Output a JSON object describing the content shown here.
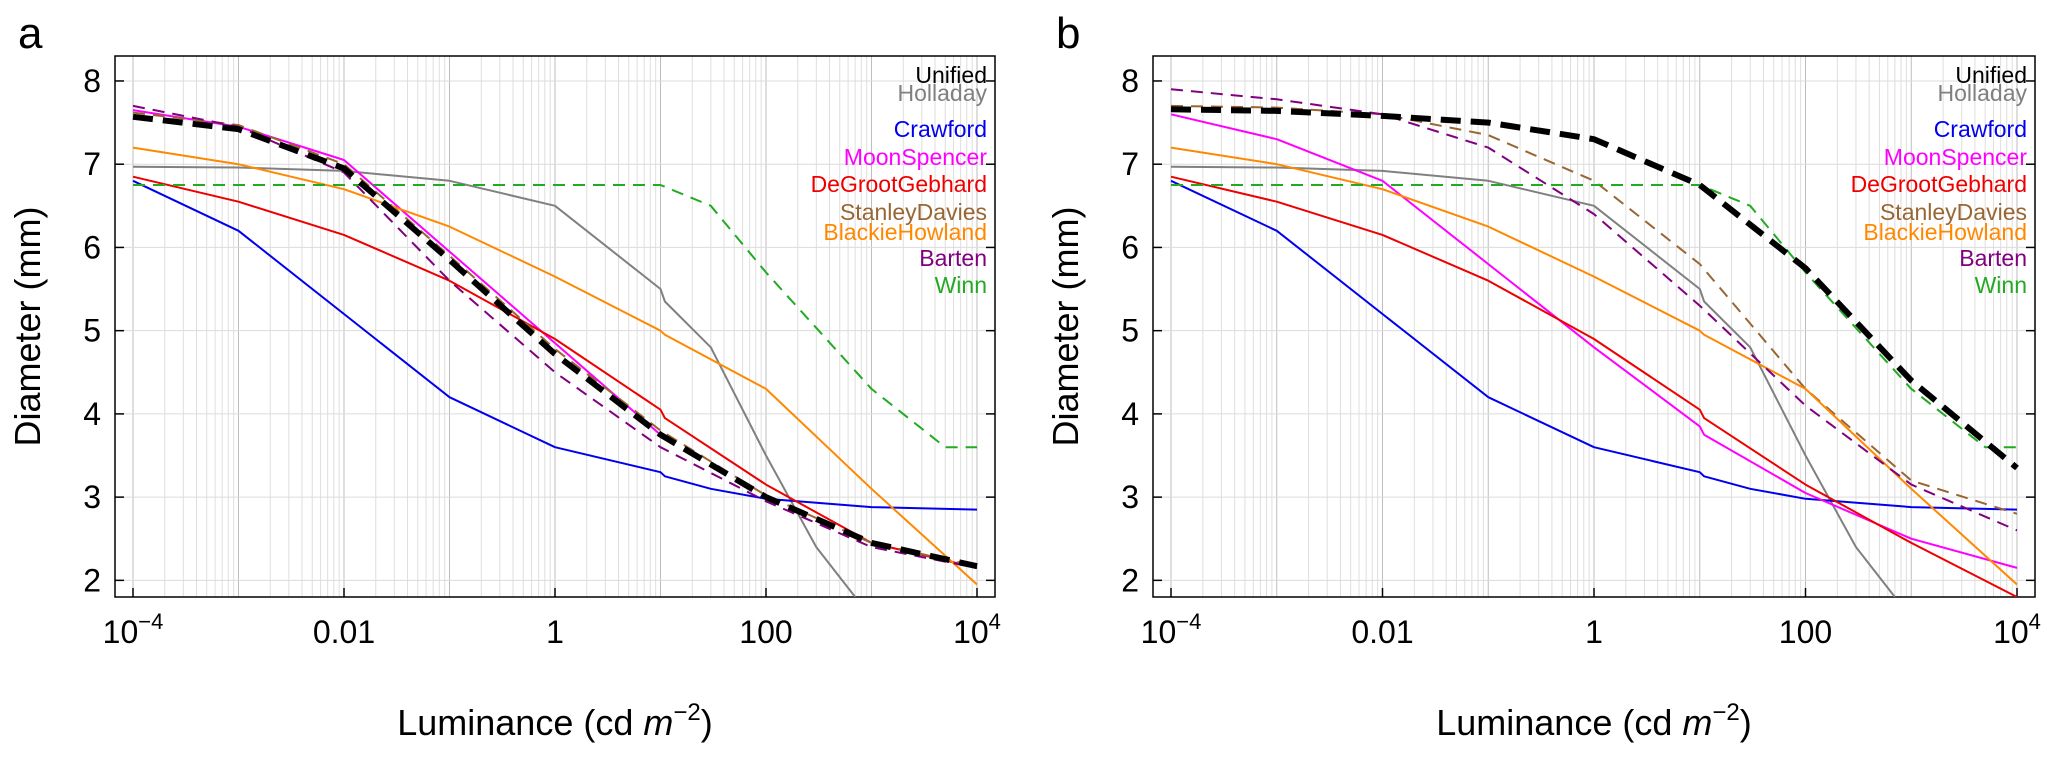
{
  "chart_data": [
    {
      "type": "line",
      "panel_label": "a",
      "xlabel": "Luminance (cd m−2)",
      "xlabel_parts": {
        "text": "Luminance (cd ",
        "italic": "m",
        "sup": "−2",
        "close": ")"
      },
      "ylabel": "Diameter (mm)",
      "xscale": "log",
      "xlim": [
        0.0001,
        10000
      ],
      "ylim": [
        1.8,
        8.3
      ],
      "xticks": [
        {
          "value": 0.0001,
          "label": "10",
          "sup": "−4"
        },
        {
          "value": 0.01,
          "label": "0.01",
          "sup": ""
        },
        {
          "value": 1,
          "label": "1",
          "sup": ""
        },
        {
          "value": 100,
          "label": "100",
          "sup": ""
        },
        {
          "value": 10000,
          "label": "10",
          "sup": "4"
        }
      ],
      "yticks": [
        2,
        3,
        4,
        5,
        6,
        7,
        8
      ],
      "grid": true,
      "legend_position": "top-right",
      "series": [
        {
          "name": "Unified",
          "color": "#000000",
          "style": "dashed-bold",
          "x": [
            0.0001,
            0.001,
            0.01,
            0.1,
            1,
            10,
            100,
            1000,
            10000
          ],
          "y": [
            7.57,
            7.42,
            6.95,
            5.85,
            4.72,
            3.75,
            3.0,
            2.45,
            2.17
          ]
        },
        {
          "name": "Holladay",
          "color": "#808080",
          "style": "solid",
          "x": [
            0.0001,
            0.001,
            0.01,
            0.1,
            1,
            10,
            11,
            30,
            100,
            300,
            700
          ],
          "y": [
            6.97,
            6.96,
            6.92,
            6.8,
            6.5,
            5.5,
            5.35,
            4.8,
            3.5,
            2.4,
            1.8
          ]
        },
        {
          "name": "Crawford",
          "color": "#0000ee",
          "style": "solid",
          "x": [
            0.0001,
            0.001,
            0.01,
            0.1,
            1,
            10,
            11,
            30,
            100,
            1000,
            10000
          ],
          "y": [
            6.8,
            6.2,
            5.2,
            4.2,
            3.6,
            3.3,
            3.25,
            3.1,
            2.98,
            2.88,
            2.85
          ]
        },
        {
          "name": "MoonSpencer",
          "color": "#ff00ff",
          "style": "solid",
          "x": [
            0.0001,
            0.001,
            0.01,
            0.1,
            1,
            10
          ],
          "y": [
            7.65,
            7.45,
            7.05,
            5.95,
            4.85,
            3.75
          ]
        },
        {
          "name": "DeGrootGebhard",
          "color": "#ee0000",
          "style": "solid",
          "x": [
            0.0001,
            0.001,
            0.01,
            0.1,
            1,
            10,
            11,
            100,
            1000,
            10000
          ],
          "y": [
            6.85,
            6.55,
            6.15,
            5.6,
            4.9,
            4.05,
            3.95,
            3.15,
            2.45,
            2.15
          ]
        },
        {
          "name": "StanleyDavies",
          "color": "#996633",
          "style": "dashed",
          "x": [
            0.0001,
            0.001,
            0.01,
            0.1,
            1,
            10,
            100,
            1000,
            10000
          ],
          "y": [
            7.62,
            7.47,
            7.0,
            5.9,
            4.78,
            3.8,
            3.02,
            2.45,
            2.17
          ]
        },
        {
          "name": "BlackieHowland",
          "color": "#ff8800",
          "style": "solid",
          "x": [
            0.0001,
            0.001,
            0.01,
            0.1,
            1,
            10,
            11,
            100,
            1000,
            10000
          ],
          "y": [
            7.2,
            7.0,
            6.7,
            6.25,
            5.65,
            5.0,
            4.95,
            4.3,
            3.1,
            1.95
          ]
        },
        {
          "name": "Barten",
          "color": "#800080",
          "style": "dashed",
          "x": [
            0.0001,
            0.001,
            0.01,
            0.1,
            1,
            10,
            100,
            1000,
            10000
          ],
          "y": [
            7.7,
            7.45,
            6.9,
            5.6,
            4.5,
            3.6,
            2.95,
            2.4,
            2.15
          ]
        },
        {
          "name": "Winn",
          "color": "#22aa22",
          "style": "dashed",
          "x": [
            0.0001,
            10,
            30,
            100,
            1000,
            5000,
            10000
          ],
          "y": [
            6.75,
            6.75,
            6.5,
            5.7,
            4.3,
            3.6,
            3.6
          ]
        }
      ]
    },
    {
      "type": "line",
      "panel_label": "b",
      "xlabel": "Luminance (cd m−2)",
      "xlabel_parts": {
        "text": "Luminance (cd ",
        "italic": "m",
        "sup": "−2",
        "close": ")"
      },
      "ylabel": "Diameter (mm)",
      "xscale": "log",
      "xlim": [
        0.0001,
        10000
      ],
      "ylim": [
        1.8,
        8.3
      ],
      "xticks": [
        {
          "value": 0.0001,
          "label": "10",
          "sup": "−4"
        },
        {
          "value": 0.01,
          "label": "0.01",
          "sup": ""
        },
        {
          "value": 1,
          "label": "1",
          "sup": ""
        },
        {
          "value": 100,
          "label": "100",
          "sup": ""
        },
        {
          "value": 10000,
          "label": "10",
          "sup": "4"
        }
      ],
      "yticks": [
        2,
        3,
        4,
        5,
        6,
        7,
        8
      ],
      "grid": true,
      "legend_position": "top-right",
      "series": [
        {
          "name": "Unified",
          "color": "#000000",
          "style": "dashed-bold",
          "x": [
            0.0001,
            0.001,
            0.01,
            0.1,
            1,
            10,
            100,
            1000,
            10000
          ],
          "y": [
            7.66,
            7.64,
            7.58,
            7.5,
            7.3,
            6.75,
            5.75,
            4.4,
            3.35
          ]
        },
        {
          "name": "Holladay",
          "color": "#808080",
          "style": "solid",
          "x": [
            0.0001,
            0.001,
            0.01,
            0.1,
            1,
            10,
            11,
            30,
            100,
            300,
            700
          ],
          "y": [
            6.97,
            6.96,
            6.92,
            6.8,
            6.5,
            5.5,
            5.35,
            4.8,
            3.5,
            2.4,
            1.8
          ]
        },
        {
          "name": "Crawford",
          "color": "#0000ee",
          "style": "solid",
          "x": [
            0.0001,
            0.001,
            0.01,
            0.1,
            1,
            10,
            11,
            30,
            100,
            1000,
            10000
          ],
          "y": [
            6.8,
            6.2,
            5.2,
            4.2,
            3.6,
            3.3,
            3.25,
            3.1,
            2.98,
            2.88,
            2.85
          ]
        },
        {
          "name": "MoonSpencer",
          "color": "#ff00ff",
          "style": "solid",
          "x": [
            0.0001,
            0.001,
            0.01,
            0.1,
            1,
            10,
            11,
            100,
            1000,
            10000
          ],
          "y": [
            7.6,
            7.3,
            6.8,
            5.8,
            4.8,
            3.85,
            3.75,
            3.05,
            2.5,
            2.15
          ]
        },
        {
          "name": "DeGrootGebhard",
          "color": "#ee0000",
          "style": "solid",
          "x": [
            0.0001,
            0.001,
            0.01,
            0.1,
            1,
            10,
            11,
            100,
            1000,
            10000
          ],
          "y": [
            6.85,
            6.55,
            6.15,
            5.6,
            4.9,
            4.05,
            3.95,
            3.15,
            2.45,
            1.8
          ]
        },
        {
          "name": "StanleyDavies",
          "color": "#996633",
          "style": "dashed",
          "x": [
            0.0001,
            0.001,
            0.01,
            0.1,
            1,
            10,
            100,
            1000,
            10000
          ],
          "y": [
            7.7,
            7.68,
            7.6,
            7.35,
            6.8,
            5.8,
            4.3,
            3.2,
            2.8
          ]
        },
        {
          "name": "BlackieHowland",
          "color": "#ff8800",
          "style": "solid",
          "x": [
            0.0001,
            0.001,
            0.01,
            0.1,
            1,
            10,
            11,
            100,
            1000,
            10000
          ],
          "y": [
            7.2,
            7.0,
            6.7,
            6.25,
            5.65,
            5.0,
            4.95,
            4.3,
            3.1,
            1.95
          ]
        },
        {
          "name": "Barten",
          "color": "#800080",
          "style": "dashed",
          "x": [
            0.0001,
            0.001,
            0.01,
            0.1,
            1,
            10,
            100,
            1000,
            10000
          ],
          "y": [
            7.9,
            7.78,
            7.6,
            7.2,
            6.4,
            5.3,
            4.1,
            3.15,
            2.6
          ]
        },
        {
          "name": "Winn",
          "color": "#22aa22",
          "style": "dashed",
          "x": [
            0.0001,
            10,
            30,
            100,
            1000,
            5000,
            10000
          ],
          "y": [
            6.75,
            6.75,
            6.5,
            5.7,
            4.3,
            3.6,
            3.6
          ]
        }
      ]
    }
  ]
}
